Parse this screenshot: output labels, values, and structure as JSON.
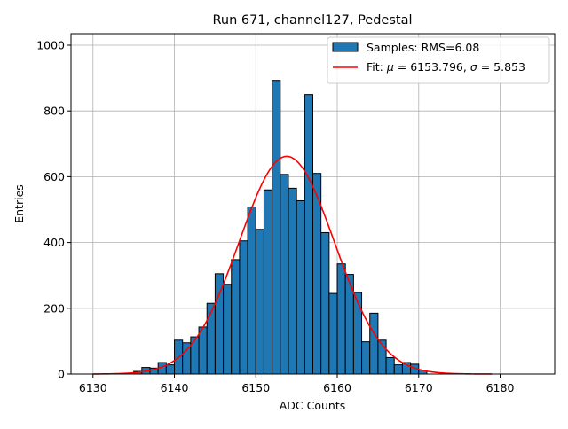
{
  "chart_data": {
    "type": "bar",
    "title": "Run 671, channel127, Pedestal",
    "xlabel": "ADC Counts",
    "ylabel": "Entries",
    "xlim": [
      6127.3,
      6186.7
    ],
    "ylim": [
      0,
      1035
    ],
    "xticks": [
      6130,
      6140,
      6150,
      6160,
      6170,
      6180
    ],
    "yticks": [
      0,
      200,
      400,
      600,
      800,
      1000
    ],
    "grid": true,
    "legend_position": "top-right",
    "bar_color": "#1f77b4",
    "fit_color": "#ff0000",
    "bin_width": 1,
    "histogram": [
      {
        "x": 6135,
        "y": 8
      },
      {
        "x": 6136,
        "y": 20
      },
      {
        "x": 6137,
        "y": 18
      },
      {
        "x": 6138,
        "y": 35
      },
      {
        "x": 6139,
        "y": 28
      },
      {
        "x": 6140,
        "y": 103
      },
      {
        "x": 6141,
        "y": 95
      },
      {
        "x": 6142,
        "y": 113
      },
      {
        "x": 6143,
        "y": 143
      },
      {
        "x": 6144,
        "y": 215
      },
      {
        "x": 6145,
        "y": 305
      },
      {
        "x": 6146,
        "y": 273
      },
      {
        "x": 6147,
        "y": 348
      },
      {
        "x": 6148,
        "y": 405
      },
      {
        "x": 6149,
        "y": 508
      },
      {
        "x": 6150,
        "y": 440
      },
      {
        "x": 6151,
        "y": 560
      },
      {
        "x": 6152,
        "y": 893
      },
      {
        "x": 6153,
        "y": 607
      },
      {
        "x": 6154,
        "y": 565
      },
      {
        "x": 6155,
        "y": 527
      },
      {
        "x": 6156,
        "y": 850
      },
      {
        "x": 6157,
        "y": 610
      },
      {
        "x": 6158,
        "y": 430
      },
      {
        "x": 6159,
        "y": 245
      },
      {
        "x": 6160,
        "y": 335
      },
      {
        "x": 6161,
        "y": 303
      },
      {
        "x": 6162,
        "y": 248
      },
      {
        "x": 6163,
        "y": 98
      },
      {
        "x": 6164,
        "y": 185
      },
      {
        "x": 6165,
        "y": 103
      },
      {
        "x": 6166,
        "y": 50
      },
      {
        "x": 6167,
        "y": 28
      },
      {
        "x": 6168,
        "y": 35
      },
      {
        "x": 6169,
        "y": 30
      },
      {
        "x": 6170,
        "y": 12
      }
    ],
    "fit": {
      "mu": 6153.796,
      "sigma": 5.853,
      "amplitude": 662,
      "x_range": [
        6130,
        6179
      ]
    },
    "legend": {
      "samples_label": "Samples: RMS=6.08",
      "fit_prefix": "Fit: ",
      "mu_symbol": "μ",
      "fit_mid": " = 6153.796, ",
      "sigma_symbol": "σ",
      "fit_suffix": " = 5.853"
    }
  }
}
